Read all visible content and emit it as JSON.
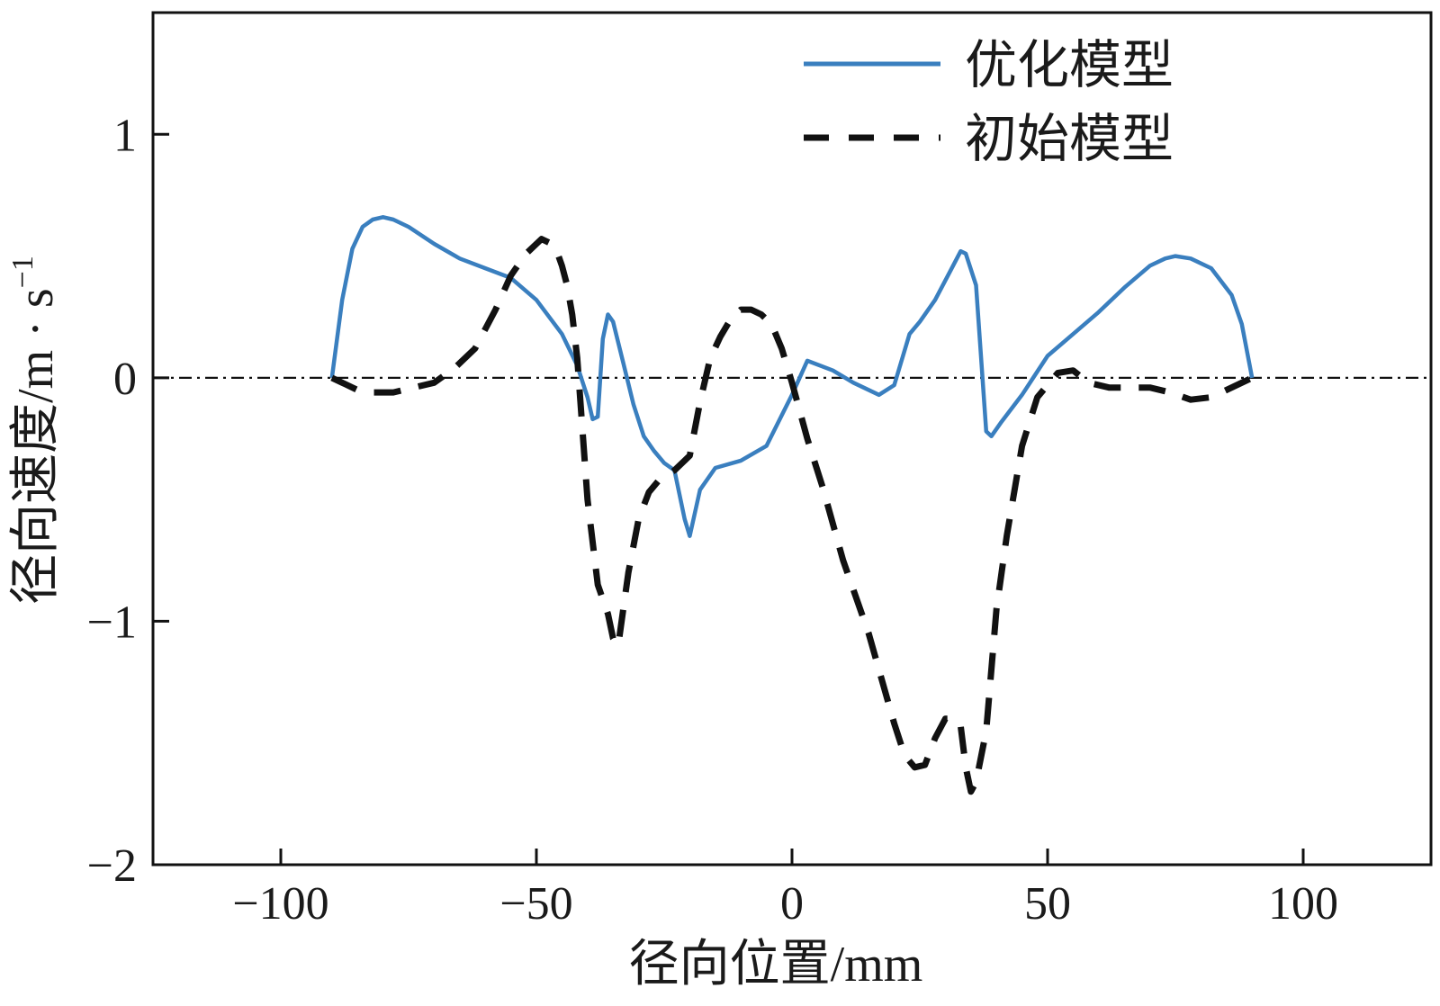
{
  "chart_data": {
    "type": "line",
    "xlabel": "径向位置/mm",
    "ylabel": "径向速度/m · s",
    "ylabel_superscript": "−1",
    "xlim": [
      -125,
      125
    ],
    "ylim": [
      -2,
      1.5
    ],
    "x_ticks": [
      -100,
      -50,
      0,
      50,
      100
    ],
    "x_tick_labels": [
      "−100",
      "−50",
      "0",
      "50",
      "100"
    ],
    "y_ticks": [
      -2,
      -1,
      0,
      1
    ],
    "y_tick_labels": [
      "−2",
      "−1",
      "0",
      "1"
    ],
    "legend_position": "top-right",
    "zero_reference_line": true,
    "series": [
      {
        "name": "优化模型",
        "color": "#3a7fbf",
        "style": "solid",
        "x": [
          -90,
          -88,
          -86,
          -84,
          -82,
          -80,
          -78,
          -75,
          -70,
          -65,
          -60,
          -55,
          -50,
          -45,
          -42,
          -40,
          -39,
          -38,
          -37,
          -36,
          -35,
          -33,
          -31,
          -29,
          -27,
          -25,
          -23,
          -21,
          -20,
          -18,
          -15,
          -10,
          -5,
          0,
          3,
          8,
          12,
          17,
          20,
          23,
          25,
          28,
          31,
          33,
          34,
          36,
          38,
          39,
          41,
          45,
          50,
          55,
          60,
          65,
          70,
          73,
          75,
          78,
          82,
          86,
          88,
          90
        ],
        "y": [
          0,
          0.32,
          0.53,
          0.62,
          0.65,
          0.66,
          0.65,
          0.62,
          0.55,
          0.49,
          0.45,
          0.41,
          0.32,
          0.18,
          0.05,
          -0.08,
          -0.17,
          -0.16,
          0.16,
          0.26,
          0.23,
          0.06,
          -0.11,
          -0.24,
          -0.3,
          -0.35,
          -0.38,
          -0.58,
          -0.65,
          -0.46,
          -0.37,
          -0.34,
          -0.28,
          -0.07,
          0.07,
          0.03,
          -0.02,
          -0.07,
          -0.03,
          0.18,
          0.23,
          0.32,
          0.44,
          0.52,
          0.51,
          0.38,
          -0.22,
          -0.24,
          -0.18,
          -0.07,
          0.09,
          0.18,
          0.27,
          0.37,
          0.46,
          0.49,
          0.5,
          0.49,
          0.45,
          0.34,
          0.22,
          0
        ]
      },
      {
        "name": "初始模型",
        "color": "#111111",
        "style": "dashed",
        "x": [
          -90,
          -88,
          -85,
          -82,
          -78,
          -74,
          -70,
          -66,
          -62,
          -58,
          -55,
          -52,
          -49,
          -47,
          -46,
          -45,
          -44,
          -43,
          -42,
          -40,
          -38,
          -36,
          -35,
          -34,
          -32,
          -30,
          -28,
          -26,
          -23,
          -20,
          -18,
          -16,
          -14,
          -12,
          -10,
          -8,
          -6,
          -4,
          -2,
          0,
          3,
          6,
          10,
          15,
          20,
          22,
          24,
          26,
          28,
          30,
          32,
          33,
          34,
          35,
          36,
          38,
          40,
          42,
          45,
          48,
          52,
          55,
          58,
          62,
          66,
          70,
          74,
          78,
          82,
          86,
          90
        ],
        "y": [
          0,
          -0.02,
          -0.05,
          -0.06,
          -0.06,
          -0.04,
          -0.02,
          0.04,
          0.12,
          0.28,
          0.42,
          0.51,
          0.57,
          0.55,
          0.52,
          0.46,
          0.38,
          0.26,
          0.08,
          -0.5,
          -0.85,
          -0.97,
          -1.07,
          -1.1,
          -0.8,
          -0.58,
          -0.47,
          -0.42,
          -0.38,
          -0.32,
          -0.1,
          0.08,
          0.17,
          0.24,
          0.28,
          0.28,
          0.26,
          0.22,
          0.12,
          -0.02,
          -0.25,
          -0.45,
          -0.75,
          -1.05,
          -1.42,
          -1.55,
          -1.6,
          -1.59,
          -1.48,
          -1.4,
          -1.4,
          -1.43,
          -1.6,
          -1.7,
          -1.66,
          -1.45,
          -0.95,
          -0.65,
          -0.28,
          -0.08,
          0.02,
          0.03,
          -0.02,
          -0.04,
          -0.04,
          -0.04,
          -0.06,
          -0.09,
          -0.08,
          -0.04,
          0
        ]
      }
    ]
  }
}
